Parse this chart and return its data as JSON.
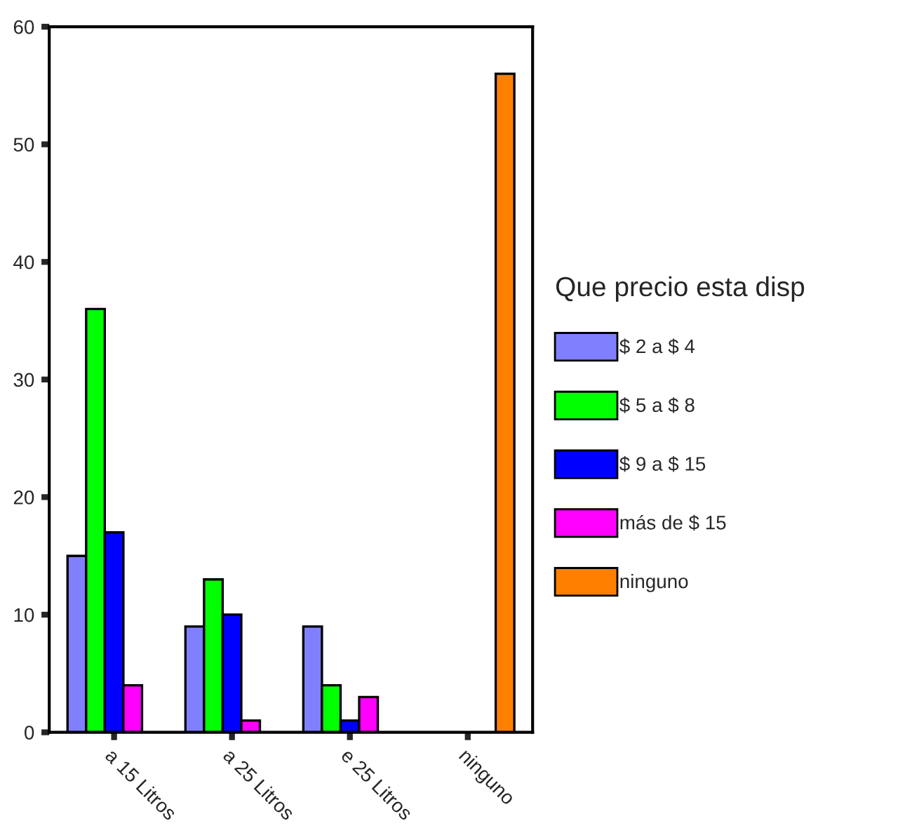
{
  "chart_data": {
    "type": "bar",
    "categories": [
      "a 15 Litros",
      "a 25 Litros",
      "e 25 Litros",
      "ninguno"
    ],
    "series": [
      {
        "name": "$ 2 a $ 4",
        "color": "#8080ff",
        "values": [
          15,
          9,
          9,
          null
        ]
      },
      {
        "name": "$ 5 a $ 8",
        "color": "#00ff00",
        "values": [
          36,
          13,
          4,
          null
        ]
      },
      {
        "name": "$ 9 a $ 15",
        "color": "#0000ff",
        "values": [
          17,
          10,
          1,
          null
        ]
      },
      {
        "name": "más de $ 15",
        "color": "#ff00ff",
        "values": [
          4,
          1,
          3,
          null
        ]
      },
      {
        "name": "ninguno",
        "color": "#ff8000",
        "values": [
          null,
          null,
          null,
          56
        ]
      }
    ],
    "legend_title": "Que precio esta disp",
    "legend": "right",
    "ylim": [
      0,
      60
    ],
    "yticks": [
      0,
      10,
      20,
      30,
      40,
      50,
      60
    ],
    "grid": false
  }
}
